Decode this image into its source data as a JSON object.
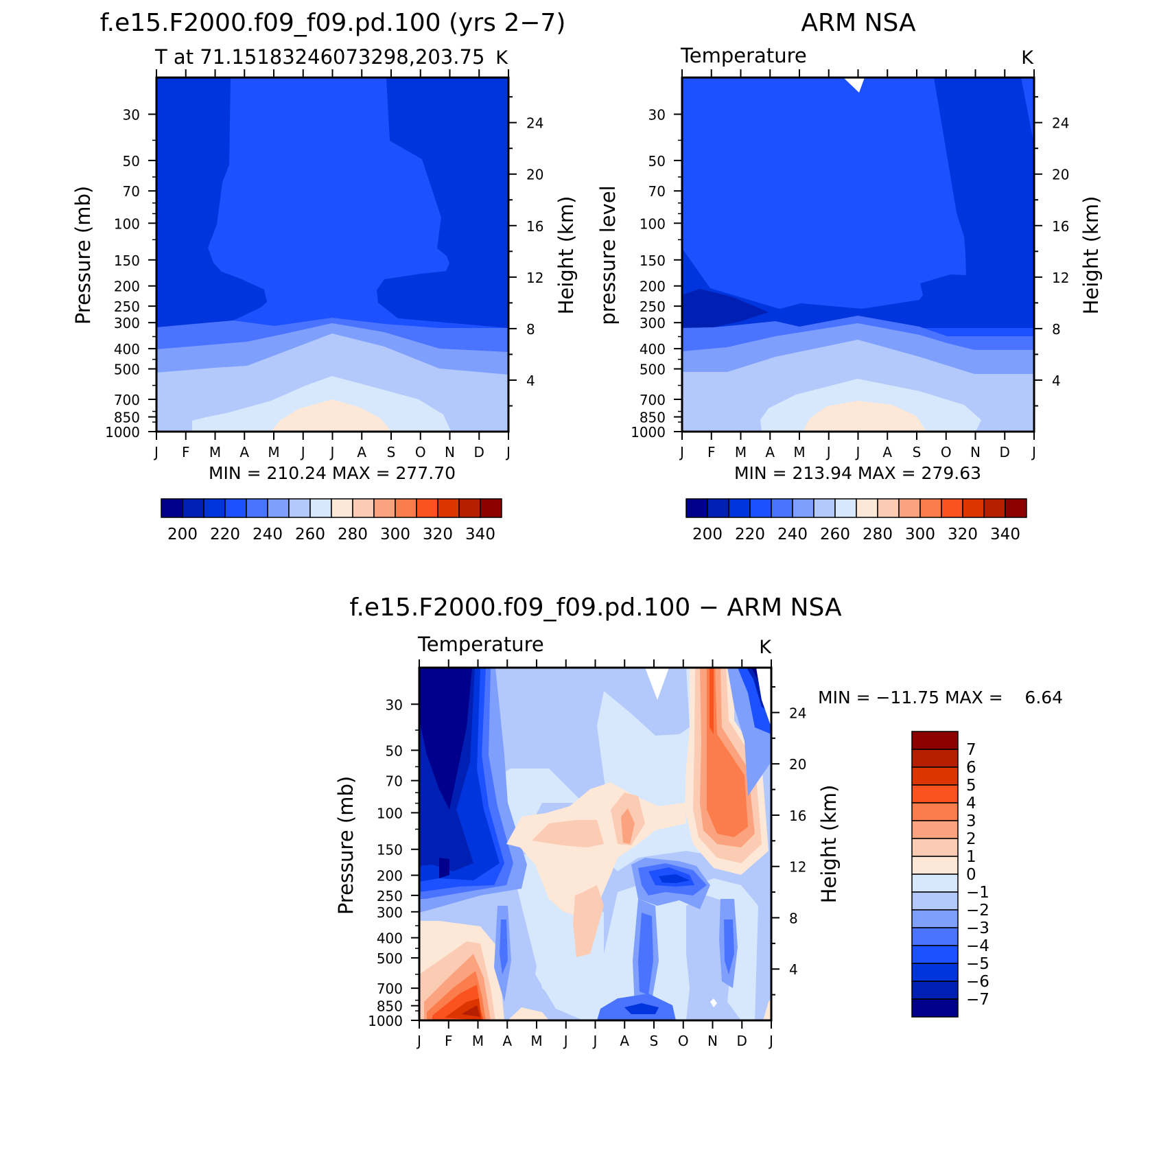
{
  "panels": {
    "model": {
      "title": "f.e15.F2000.f09_f09.pd.100 (yrs 2−7)",
      "subtitle": "T at 71.15183246073298,203.75",
      "units": "K",
      "left_label": "Pressure (mb)",
      "right_label": "Height (km)",
      "stats": "MIN = 210.24 MAX = 277.70"
    },
    "obs": {
      "title": "ARM NSA",
      "subtitle": "Temperature",
      "units": "K",
      "left_label": "pressure level",
      "right_label": "Height (km)",
      "stats": "MIN = 213.94 MAX = 279.63"
    },
    "diff": {
      "title": "f.e15.F2000.f09_f09.pd.100 − ARM NSA",
      "subtitle": "Temperature",
      "units": "K",
      "left_label": "Pressure (mb)",
      "right_label": "Height (km)",
      "stats": "MIN = −11.75 MAX =    6.64"
    }
  },
  "chart_data": [
    {
      "type": "heatmap",
      "title": "f.e15.F2000.f09_f09.pd.100 (yrs 2−7)",
      "subtitle": "T at 71.15183246073298,203.75",
      "units": "K",
      "x_ticks": [
        "J",
        "F",
        "M",
        "A",
        "M",
        "J",
        "J",
        "A",
        "S",
        "O",
        "N",
        "D",
        "J"
      ],
      "y_ticks": [
        30,
        50,
        70,
        100,
        150,
        200,
        250,
        300,
        400,
        500,
        700,
        850,
        1000
      ],
      "right_ticks": [
        4,
        8,
        12,
        16,
        20,
        24
      ],
      "ylabel": "Pressure (mb)",
      "right_label": "Height (km)",
      "y_scale": "log",
      "ylim": [
        1000,
        20
      ],
      "colorbar_levels": [
        195,
        205,
        215,
        225,
        235,
        245,
        255,
        265,
        275,
        285,
        295,
        305,
        315,
        325,
        335,
        345
      ],
      "colorbar_labels": [
        "200",
        "220",
        "240",
        "260",
        "280",
        "300",
        "320",
        "340"
      ],
      "colors": [
        "#00008c",
        "#0020b4",
        "#0034dc",
        "#1d50ff",
        "#4a74ff",
        "#7f9ffd",
        "#b3c8fb",
        "#d8e8fc",
        "#fde8d8",
        "#fbcbb3",
        "#fba37f",
        "#fb7d4b",
        "#fa531f",
        "#dc3500",
        "#b51e00",
        "#8c0000"
      ],
      "stats": "MIN = 210.24 MAX = 277.70",
      "min": 210.24,
      "max": 277.7
    },
    {
      "type": "heatmap",
      "title": "ARM NSA",
      "subtitle": "Temperature",
      "units": "K",
      "x_ticks": [
        "J",
        "F",
        "M",
        "A",
        "M",
        "J",
        "J",
        "A",
        "S",
        "O",
        "N",
        "D",
        "J"
      ],
      "y_ticks": [
        30,
        50,
        70,
        100,
        150,
        200,
        250,
        300,
        400,
        500,
        700,
        850,
        1000
      ],
      "right_ticks": [
        4,
        8,
        12,
        16,
        20,
        24
      ],
      "ylabel": "pressure level",
      "right_label": "Height (km)",
      "y_scale": "log",
      "ylim": [
        1000,
        20
      ],
      "colorbar_labels": [
        "200",
        "220",
        "240",
        "260",
        "280",
        "300",
        "320",
        "340"
      ],
      "stats": "MIN = 213.94 MAX = 279.63",
      "min": 213.94,
      "max": 279.63
    },
    {
      "type": "heatmap",
      "title": "f.e15.F2000.f09_f09.pd.100 − ARM NSA",
      "subtitle": "Temperature",
      "units": "K",
      "x_ticks": [
        "J",
        "F",
        "M",
        "A",
        "M",
        "J",
        "J",
        "A",
        "S",
        "O",
        "N",
        "D",
        "J"
      ],
      "y_ticks": [
        30,
        50,
        70,
        100,
        150,
        200,
        250,
        300,
        400,
        500,
        700,
        850,
        1000
      ],
      "right_ticks": [
        4,
        8,
        12,
        16,
        20,
        24
      ],
      "ylabel": "Pressure (mb)",
      "right_label": "Height (km)",
      "y_scale": "log",
      "ylim": [
        1000,
        20
      ],
      "colorbar_levels": [
        -7,
        -6,
        -5,
        -4,
        -3,
        -2,
        -1,
        0,
        1,
        2,
        3,
        4,
        5,
        6,
        7
      ],
      "colorbar_labels": [
        "7",
        "6",
        "5",
        "4",
        "3",
        "2",
        "1",
        "0",
        "−1",
        "−2",
        "−3",
        "−4",
        "−5",
        "−6",
        "−7"
      ],
      "colors": [
        "#8c0000",
        "#b51e00",
        "#dc3500",
        "#fa531f",
        "#fb7d4b",
        "#fba37f",
        "#fbcbb3",
        "#fde8d8",
        "#d8e8fc",
        "#b3c8fb",
        "#7f9ffd",
        "#4a74ff",
        "#1d50ff",
        "#0034dc",
        "#0020b4",
        "#00008c"
      ],
      "stats": "MIN = −11.75 MAX =    6.64",
      "min": -11.75,
      "max": 6.64
    }
  ]
}
